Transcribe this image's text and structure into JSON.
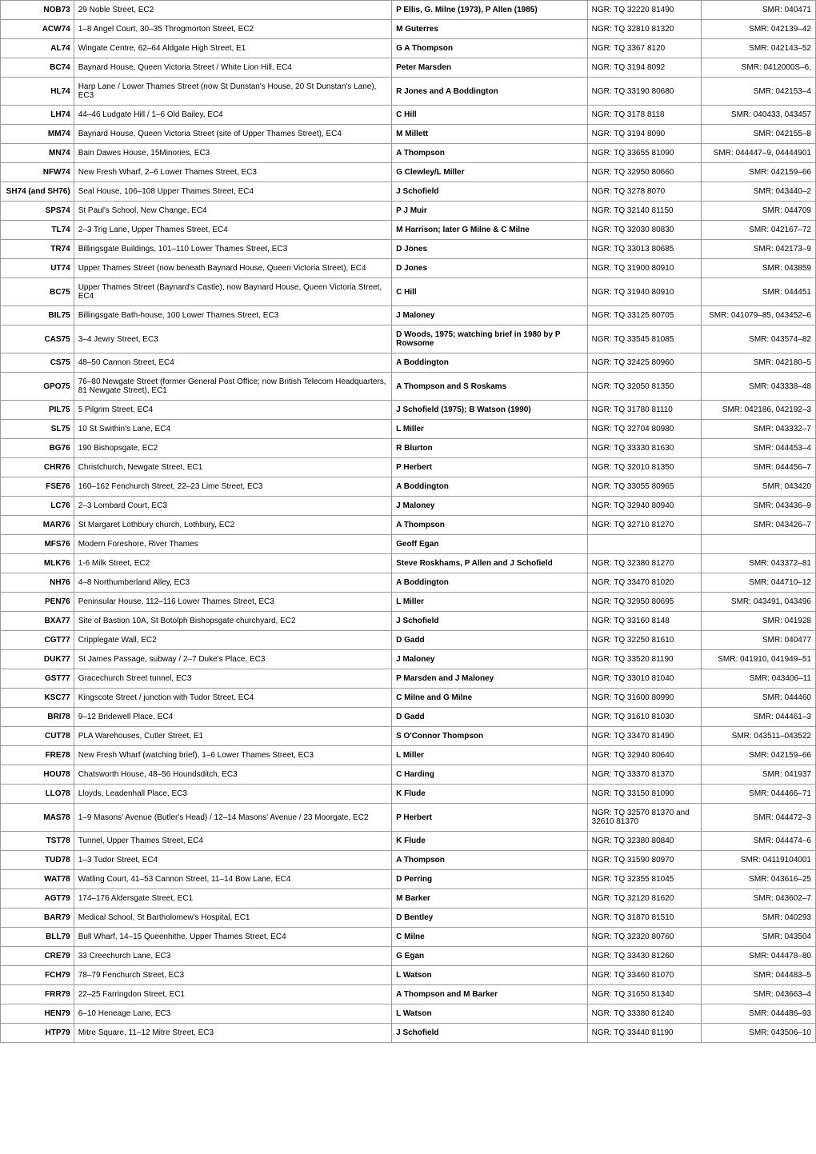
{
  "table": {
    "columns": [
      {
        "key": "code",
        "align": "right",
        "bold": true
      },
      {
        "key": "location",
        "align": "left",
        "bold": false
      },
      {
        "key": "author",
        "align": "left",
        "bold": true
      },
      {
        "key": "ngr",
        "align": "left",
        "bold": false
      },
      {
        "key": "smr",
        "align": "right",
        "bold": false
      }
    ],
    "rows": [
      {
        "code": "NOB73",
        "location": "29 Noble Street, EC2",
        "author": "P Ellis, G. Milne (1973), P Allen (1985)",
        "ngr": "NGR: TQ 32220 81490",
        "smr": "SMR: 040471"
      },
      {
        "code": "ACW74",
        "location": "1–8 Angel Court, 30–35 Throgmorton Street, EC2",
        "author": "M Guterres",
        "ngr": "NGR: TQ 32810 81320",
        "smr": "SMR: 042139–42"
      },
      {
        "code": "AL74",
        "location": "Wingate Centre, 62–64 Aldgate High Street, E1",
        "author": "G A Thompson",
        "ngr": "NGR: TQ 3367 8120",
        "smr": "SMR: 042143–52"
      },
      {
        "code": "BC74",
        "location": "Baynard House, Queen Victoria Street / White Lion Hill, EC4",
        "author": "Peter Marsden",
        "ngr": "NGR: TQ 3194 8092",
        "smr": "SMR: 0412000S–6,"
      },
      {
        "code": "HL74",
        "location": "Harp Lane / Lower Thames Street (now St Dunstan's House, 20 St Dunstan's Lane), EC3",
        "author": "R Jones and A Boddington",
        "ngr": "NGR: TQ 33190 80680",
        "smr": "SMR: 042153–4"
      },
      {
        "code": "LH74",
        "location": "44–46 Ludgate Hill / 1–6 Old Bailey, EC4",
        "author": "C Hill",
        "ngr": "NGR: TQ 3178 8118",
        "smr": "SMR: 040433, 043457"
      },
      {
        "code": "MM74",
        "location": "Baynard House, Queen Victoria Street (site of Upper Thames Street), EC4",
        "author": "M Millett",
        "ngr": "NGR: TQ 3194 8090",
        "smr": "SMR: 042155–8"
      },
      {
        "code": "MN74",
        "location": "Bain Dawes House, 15Minories, EC3",
        "author": "A Thompson",
        "ngr": "NGR: TQ 33655 81090",
        "smr": "SMR: 044447–9, 04444901"
      },
      {
        "code": "NFW74",
        "location": "New Fresh Wharf, 2–6 Lower Thames Street, EC3",
        "author": "G Clewley/L Miller",
        "ngr": "NGR: TQ 32950 80660",
        "smr": "SMR: 042159–66"
      },
      {
        "code": "SH74 (and SH76)",
        "location": "Seal House, 106–108 Upper Thames Street, EC4",
        "author": "J Schofield",
        "ngr": "NGR: TQ 3278 8070",
        "smr": "SMR: 043440–2"
      },
      {
        "code": "SPS74",
        "location": "St Paul's School, New Change, EC4",
        "author": "P J Muir",
        "ngr": "NGR: TQ 32140 81150",
        "smr": "SMR: 044709"
      },
      {
        "code": "TL74",
        "location": "2–3 Trig Lane, Upper Thames Street, EC4",
        "author": "M Harrison; later G Milne & C Milne",
        "ngr": "NGR: TQ 32030 80830",
        "smr": "SMR: 042167–72"
      },
      {
        "code": "TR74",
        "location": "Billingsgate Buildings, 101–110 Lower Thames Street, EC3",
        "author": "D Jones",
        "ngr": "NGR: TQ 33013 80685",
        "smr": "SMR: 042173–9"
      },
      {
        "code": "UT74",
        "location": "Upper Thames Street (now beneath Baynard House, Queen Victoria Street), EC4",
        "author": "D Jones",
        "ngr": "NGR: TQ 31900 80910",
        "smr": "SMR: 043859"
      },
      {
        "code": "BC75",
        "location": "Upper Thames Street (Baynard's Castle), now Baynard House, Queen Victoria Street, EC4",
        "author": "C Hill",
        "ngr": "NGR: TQ 31940 80910",
        "smr": "SMR: 044451"
      },
      {
        "code": "BIL75",
        "location": "Billingsgate Bath-house, 100 Lower Thames Street, EC3",
        "author": "J Maloney",
        "ngr": "NGR: TQ 33125 80705",
        "smr": "SMR: 041079–85, 043452–6"
      },
      {
        "code": "CAS75",
        "location": "3–4 Jewry Street, EC3",
        "author": "D Woods, 1975; watching brief in 1980 by P Rowsome",
        "ngr": "NGR: TQ 33545 81085",
        "smr": "SMR: 043574–82"
      },
      {
        "code": "CS75",
        "location": "48–50 Cannon Street, EC4",
        "author": "A Boddington",
        "ngr": "NGR: TQ 32425 80960",
        "smr": "SMR: 042180–5"
      },
      {
        "code": "GPO75",
        "location": "76–80 Newgate Street (former General Post Office; now British Telecom Headquarters, 81 Newgate Street), EC1",
        "author": "A Thompson and S Roskams",
        "ngr": "NGR: TQ 32050 81350",
        "smr": "SMR: 043338–48"
      },
      {
        "code": "PIL75",
        "location": "5 Pilgrim Street, EC4",
        "author": "J Schofield (1975); B Watson (1990)",
        "ngr": "NGR: TQ 31780 81110",
        "smr": "SMR: 042186, 042192–3"
      },
      {
        "code": "SL75",
        "location": "10 St Swithin's Lane, EC4",
        "author": "L Miller",
        "ngr": "NGR: TQ 32704 80980",
        "smr": "SMR: 043332–7"
      },
      {
        "code": "BG76",
        "location": "190 Bishopsgate, EC2",
        "author": "R Blurton",
        "ngr": "NGR: TQ 33330 81630",
        "smr": "SMR: 044453–4"
      },
      {
        "code": "CHR76",
        "location": "Christchurch, Newgate Street, EC1",
        "author": "P Herbert",
        "ngr": "NGR: TQ 32010 81350",
        "smr": "SMR: 044456–7"
      },
      {
        "code": "FSE76",
        "location": "160–162 Fenchurch Street, 22–23 Lime Street, EC3",
        "author": "A Boddington",
        "ngr": "NGR: TQ 33055 80965",
        "smr": "SMR: 043420"
      },
      {
        "code": "LC76",
        "location": "2–3 Lombard Court, EC3",
        "author": "J Maloney",
        "ngr": "NGR: TQ 32940 80940",
        "smr": "SMR: 043436–9"
      },
      {
        "code": "MAR76",
        "location": "St Margaret Lothbury church, Lothbury, EC2",
        "author": "A Thompson",
        "ngr": "NGR: TQ 32710 81270",
        "smr": "SMR: 043426–7"
      },
      {
        "code": "MFS76",
        "location": "Modern Foreshore, River Thames",
        "author": "Geoff Egan",
        "ngr": "",
        "smr": ""
      },
      {
        "code": "MLK76",
        "location": "1-6 Milk Street, EC2",
        "author": "Steve Roskhams, P Allen and J Schofield",
        "ngr": "NGR: TQ 32380 81270",
        "smr": "SMR: 043372–81"
      },
      {
        "code": "NH76",
        "location": "4–8 Northumberland Alley, EC3",
        "author": "A Boddington",
        "ngr": "NGR: TQ 33470 81020",
        "smr": "SMR: 044710–12"
      },
      {
        "code": "PEN76",
        "location": "Peninsular House, 112–116 Lower Thames Street, EC3",
        "author": "L Miller",
        "ngr": "NGR: TQ 32950 80695",
        "smr": "SMR: 043491, 043496"
      },
      {
        "code": "BXA77",
        "location": "Site of Bastion 10A, St Botolph Bishopsgate churchyard, EC2",
        "author": "J Schofield",
        "ngr": "NGR: TQ 33160 8148",
        "smr": "SMR: 041928"
      },
      {
        "code": "CGT77",
        "location": "Cripplegate Wall, EC2",
        "author": "D Gadd",
        "ngr": "NGR: TQ 32250 81610",
        "smr": "SMR: 040477"
      },
      {
        "code": "DUK77",
        "location": "St James Passage, subway / 2–7 Duke's Place, EC3",
        "author": "J Maloney",
        "ngr": "NGR: TQ 33520 81190",
        "smr": "SMR: 041910, 041949–51"
      },
      {
        "code": "GST77",
        "location": "Gracechurch Street tunnel, EC3",
        "author": "P Marsden and J Maloney",
        "ngr": "NGR: TQ 33010 81040",
        "smr": "SMR: 043406–11"
      },
      {
        "code": "KSC77",
        "location": "Kingscote Street / junction with Tudor Street, EC4",
        "author": "C Milne and G Milne",
        "ngr": "NGR: TQ 31600 80990",
        "smr": "SMR: 044460"
      },
      {
        "code": "BRI78",
        "location": "9–12 Bridewell Place, EC4",
        "author": "D Gadd",
        "ngr": "NGR: TQ 31610 81030",
        "smr": "SMR: 044461–3"
      },
      {
        "code": "CUT78",
        "location": "PLA Warehouses, Cutler Street, E1",
        "author": "S O'Connor Thompson",
        "ngr": "NGR: TQ 33470 81490",
        "smr": "SMR: 043511–043522"
      },
      {
        "code": "FRE78",
        "location": "New Fresh Wharf (watching brief), 1–6 Lower Thames Street, EC3",
        "author": "L Miller",
        "ngr": "NGR: TQ 32940 80640",
        "smr": "SMR: 042159–66"
      },
      {
        "code": "HOU78",
        "location": "Chatsworth House, 48–56 Houndsditch, EC3",
        "author": "C Harding",
        "ngr": "NGR: TQ 33370 81370",
        "smr": "SMR: 041937"
      },
      {
        "code": "LLO78",
        "location": "Lloyds, Leadenhall Place, EC3",
        "author": "K Flude",
        "ngr": "NGR: TQ 33150 81090",
        "smr": "SMR: 044466–71"
      },
      {
        "code": "MAS78",
        "location": "1–9 Masons' Avenue (Butler's Head) / 12–14 Masons' Avenue / 23 Moorgate, EC2",
        "author": "P Herbert",
        "ngr": "NGR: TQ 32570 81370 and 32610 81370",
        "smr": "SMR: 044472–3"
      },
      {
        "code": "TST78",
        "location": "Tunnel, Upper Thames Street, EC4",
        "author": "K Flude",
        "ngr": "NGR: TQ 32380 80840",
        "smr": "SMR: 044474–6"
      },
      {
        "code": "TUD78",
        "location": "1–3 Tudor Street, EC4",
        "author": "A Thompson",
        "ngr": "NGR: TQ 31590 80970",
        "smr": "SMR: 04119104001"
      },
      {
        "code": "WAT78",
        "location": "Watling Court, 41–53 Cannon Street, 11–14 Bow Lane, EC4",
        "author": "D Perring",
        "ngr": "NGR: TQ 32355 81045",
        "smr": "SMR: 043616–25"
      },
      {
        "code": "AGT79",
        "location": "174–176 Aldersgate Street, EC1",
        "author": "M Barker",
        "ngr": "NGR: TQ 32120 81620",
        "smr": "SMR: 043602–7"
      },
      {
        "code": "BAR79",
        "location": "Medical School, St Bartholomew's Hospital, EC1",
        "author": "D Bentley",
        "ngr": "NGR: TQ 31870 81510",
        "smr": "SMR: 040293"
      },
      {
        "code": "BLL79",
        "location": "Bull Wharf, 14–15 Queenhithe, Upper Thames Street, EC4",
        "author": "C Milne",
        "ngr": "NGR: TQ 32320 80760",
        "smr": "SMR: 043504"
      },
      {
        "code": "CRE79",
        "location": "33 Creechurch Lane, EC3",
        "author": "G Egan",
        "ngr": "NGR: TQ 33430 81260",
        "smr": "SMR: 044478–80"
      },
      {
        "code": "FCH79",
        "location": "78–79 Fenchurch Street, EC3",
        "author": "L Watson",
        "ngr": "NGR: TQ 33460 81070",
        "smr": "SMR: 044483–5"
      },
      {
        "code": "FRR79",
        "location": "22–25 Farringdon Street, EC1",
        "author": "A Thompson and M Barker",
        "ngr": "NGR: TQ 31650 81340",
        "smr": "SMR: 043663–4"
      },
      {
        "code": "HEN79",
        "location": "6–10 Heneage Lane, EC3",
        "author": "L Watson",
        "ngr": "NGR: TQ 33380 81240",
        "smr": "SMR: 044486–93"
      },
      {
        "code": "HTP79",
        "location": "Mitre Square, 11–12 Mitre Street, EC3",
        "author": "J Schofield",
        "ngr": "NGR: TQ 33440 81190",
        "smr": "SMR: 043506–10"
      }
    ]
  }
}
